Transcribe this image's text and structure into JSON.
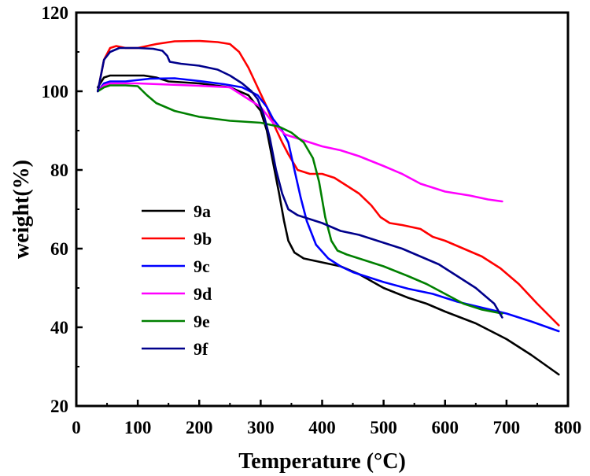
{
  "chart_data": {
    "type": "line",
    "xlabel": "Temperature (°C)",
    "ylabel": "weight(%)",
    "xlim": [
      0,
      800
    ],
    "ylim": [
      20,
      120
    ],
    "x_ticks": [
      "0",
      "100",
      "200",
      "300",
      "400",
      "500",
      "600",
      "700",
      "800"
    ],
    "y_ticks": [
      "20",
      "40",
      "60",
      "80",
      "100",
      "120"
    ],
    "grid": false,
    "legend_position": "center-left",
    "series": [
      {
        "name": "9a",
        "color": "#000000",
        "points": [
          [
            35,
            101
          ],
          [
            45,
            103.5
          ],
          [
            55,
            104
          ],
          [
            80,
            104
          ],
          [
            110,
            104
          ],
          [
            130,
            103.5
          ],
          [
            150,
            102.5
          ],
          [
            200,
            102
          ],
          [
            250,
            101
          ],
          [
            280,
            99
          ],
          [
            300,
            95
          ],
          [
            310,
            90
          ],
          [
            320,
            82
          ],
          [
            330,
            74
          ],
          [
            338,
            67
          ],
          [
            345,
            62
          ],
          [
            355,
            59
          ],
          [
            370,
            57.5
          ],
          [
            400,
            56.5
          ],
          [
            430,
            55.5
          ],
          [
            460,
            53.5
          ],
          [
            500,
            50
          ],
          [
            540,
            47.5
          ],
          [
            570,
            46
          ],
          [
            600,
            44
          ],
          [
            650,
            41
          ],
          [
            700,
            37
          ],
          [
            740,
            33
          ],
          [
            785,
            28
          ]
        ]
      },
      {
        "name": "9b",
        "color": "#ff0000",
        "points": [
          [
            35,
            100
          ],
          [
            45,
            108
          ],
          [
            55,
            111
          ],
          [
            65,
            111.5
          ],
          [
            80,
            111
          ],
          [
            100,
            111
          ],
          [
            130,
            112
          ],
          [
            160,
            112.7
          ],
          [
            200,
            112.8
          ],
          [
            230,
            112.5
          ],
          [
            250,
            112
          ],
          [
            265,
            110
          ],
          [
            280,
            106
          ],
          [
            295,
            101
          ],
          [
            310,
            96
          ],
          [
            320,
            92
          ],
          [
            335,
            87
          ],
          [
            345,
            84
          ],
          [
            360,
            80
          ],
          [
            380,
            79
          ],
          [
            400,
            79
          ],
          [
            420,
            78
          ],
          [
            440,
            76
          ],
          [
            460,
            74
          ],
          [
            480,
            71
          ],
          [
            495,
            68
          ],
          [
            510,
            66.5
          ],
          [
            530,
            66
          ],
          [
            560,
            65
          ],
          [
            580,
            63
          ],
          [
            600,
            62
          ],
          [
            630,
            60
          ],
          [
            660,
            58
          ],
          [
            690,
            55
          ],
          [
            720,
            51
          ],
          [
            750,
            46
          ],
          [
            785,
            40.5
          ]
        ]
      },
      {
        "name": "9c",
        "color": "#0000ff",
        "points": [
          [
            35,
            100
          ],
          [
            45,
            102
          ],
          [
            55,
            102.5
          ],
          [
            80,
            102.5
          ],
          [
            120,
            103.2
          ],
          [
            160,
            103.3
          ],
          [
            200,
            102.6
          ],
          [
            240,
            101.8
          ],
          [
            270,
            101
          ],
          [
            295,
            99
          ],
          [
            310,
            96
          ],
          [
            320,
            93
          ],
          [
            335,
            90
          ],
          [
            345,
            87
          ],
          [
            355,
            80
          ],
          [
            365,
            73
          ],
          [
            375,
            67
          ],
          [
            390,
            61
          ],
          [
            410,
            57.5
          ],
          [
            430,
            55.5
          ],
          [
            450,
            54
          ],
          [
            470,
            53
          ],
          [
            500,
            51.5
          ],
          [
            540,
            49.8
          ],
          [
            580,
            48.5
          ],
          [
            620,
            46.5
          ],
          [
            660,
            45
          ],
          [
            700,
            43.5
          ],
          [
            740,
            41.5
          ],
          [
            785,
            39
          ]
        ]
      },
      {
        "name": "9d",
        "color": "#ff00ff",
        "points": [
          [
            35,
            100
          ],
          [
            45,
            101.5
          ],
          [
            55,
            102
          ],
          [
            100,
            102
          ],
          [
            150,
            101.7
          ],
          [
            200,
            101.4
          ],
          [
            250,
            101
          ],
          [
            280,
            98
          ],
          [
            300,
            96
          ],
          [
            320,
            92
          ],
          [
            340,
            89
          ],
          [
            360,
            88
          ],
          [
            380,
            87
          ],
          [
            400,
            86
          ],
          [
            430,
            85
          ],
          [
            460,
            83.5
          ],
          [
            500,
            81
          ],
          [
            530,
            79
          ],
          [
            560,
            76.5
          ],
          [
            600,
            74.5
          ],
          [
            640,
            73.5
          ],
          [
            670,
            72.5
          ],
          [
            693,
            72
          ]
        ]
      },
      {
        "name": "9e",
        "color": "#008000",
        "points": [
          [
            35,
            100
          ],
          [
            45,
            101
          ],
          [
            55,
            101.5
          ],
          [
            80,
            101.5
          ],
          [
            100,
            101.3
          ],
          [
            115,
            99
          ],
          [
            130,
            97
          ],
          [
            160,
            95
          ],
          [
            200,
            93.5
          ],
          [
            250,
            92.5
          ],
          [
            300,
            92
          ],
          [
            330,
            91
          ],
          [
            350,
            89.5
          ],
          [
            370,
            87
          ],
          [
            385,
            83
          ],
          [
            395,
            77
          ],
          [
            405,
            68
          ],
          [
            415,
            62
          ],
          [
            425,
            59.5
          ],
          [
            440,
            58.5
          ],
          [
            460,
            57.5
          ],
          [
            500,
            55.5
          ],
          [
            540,
            53
          ],
          [
            570,
            51
          ],
          [
            600,
            48.5
          ],
          [
            630,
            46
          ],
          [
            660,
            44.5
          ],
          [
            693,
            43.5
          ]
        ]
      },
      {
        "name": "9f",
        "color": "#00008b",
        "points": [
          [
            35,
            100
          ],
          [
            45,
            108
          ],
          [
            55,
            110
          ],
          [
            70,
            111
          ],
          [
            100,
            111
          ],
          [
            125,
            110.8
          ],
          [
            140,
            110.3
          ],
          [
            148,
            109
          ],
          [
            152,
            107.5
          ],
          [
            170,
            107
          ],
          [
            200,
            106.5
          ],
          [
            230,
            105.5
          ],
          [
            250,
            104
          ],
          [
            270,
            102
          ],
          [
            285,
            100
          ],
          [
            295,
            98
          ],
          [
            305,
            94
          ],
          [
            315,
            88
          ],
          [
            325,
            80
          ],
          [
            335,
            74
          ],
          [
            345,
            70
          ],
          [
            360,
            68.5
          ],
          [
            380,
            67.5
          ],
          [
            400,
            66.5
          ],
          [
            430,
            64.5
          ],
          [
            460,
            63.5
          ],
          [
            500,
            61.5
          ],
          [
            530,
            60
          ],
          [
            560,
            58
          ],
          [
            590,
            56
          ],
          [
            620,
            53
          ],
          [
            650,
            50
          ],
          [
            665,
            48
          ],
          [
            680,
            46
          ],
          [
            693,
            42.5
          ]
        ]
      }
    ]
  }
}
